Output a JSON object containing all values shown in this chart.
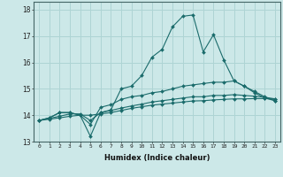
{
  "xlabel": "Humidex (Indice chaleur)",
  "bg_color": "#cce8e8",
  "grid_color": "#aed4d4",
  "line_color": "#1a6b6b",
  "xlim": [
    -0.5,
    23.5
  ],
  "ylim": [
    13.0,
    18.3
  ],
  "yticks": [
    13,
    14,
    15,
    16,
    17,
    18
  ],
  "xticks": [
    0,
    1,
    2,
    3,
    4,
    5,
    6,
    7,
    8,
    9,
    10,
    11,
    12,
    13,
    14,
    15,
    16,
    17,
    18,
    19,
    20,
    21,
    22,
    23
  ],
  "series1": [
    13.8,
    13.9,
    14.1,
    14.1,
    14.0,
    13.2,
    14.1,
    14.2,
    15.0,
    15.1,
    15.5,
    16.2,
    16.5,
    17.35,
    17.75,
    17.8,
    16.4,
    17.05,
    16.1,
    15.3,
    15.1,
    14.85,
    14.65,
    14.55
  ],
  "series2": [
    13.8,
    13.9,
    14.1,
    14.1,
    14.0,
    13.65,
    14.3,
    14.4,
    14.6,
    14.7,
    14.75,
    14.85,
    14.9,
    15.0,
    15.1,
    15.15,
    15.2,
    15.25,
    15.25,
    15.3,
    15.1,
    14.9,
    14.7,
    14.55
  ],
  "series3": [
    13.8,
    13.88,
    13.96,
    14.05,
    14.05,
    13.8,
    14.1,
    14.18,
    14.27,
    14.35,
    14.42,
    14.5,
    14.55,
    14.6,
    14.65,
    14.7,
    14.7,
    14.75,
    14.75,
    14.78,
    14.75,
    14.72,
    14.68,
    14.62
  ],
  "series4": [
    13.8,
    13.85,
    13.9,
    13.96,
    14.0,
    14.0,
    14.05,
    14.1,
    14.18,
    14.26,
    14.32,
    14.38,
    14.42,
    14.46,
    14.5,
    14.54,
    14.55,
    14.58,
    14.6,
    14.62,
    14.62,
    14.63,
    14.63,
    14.62
  ]
}
